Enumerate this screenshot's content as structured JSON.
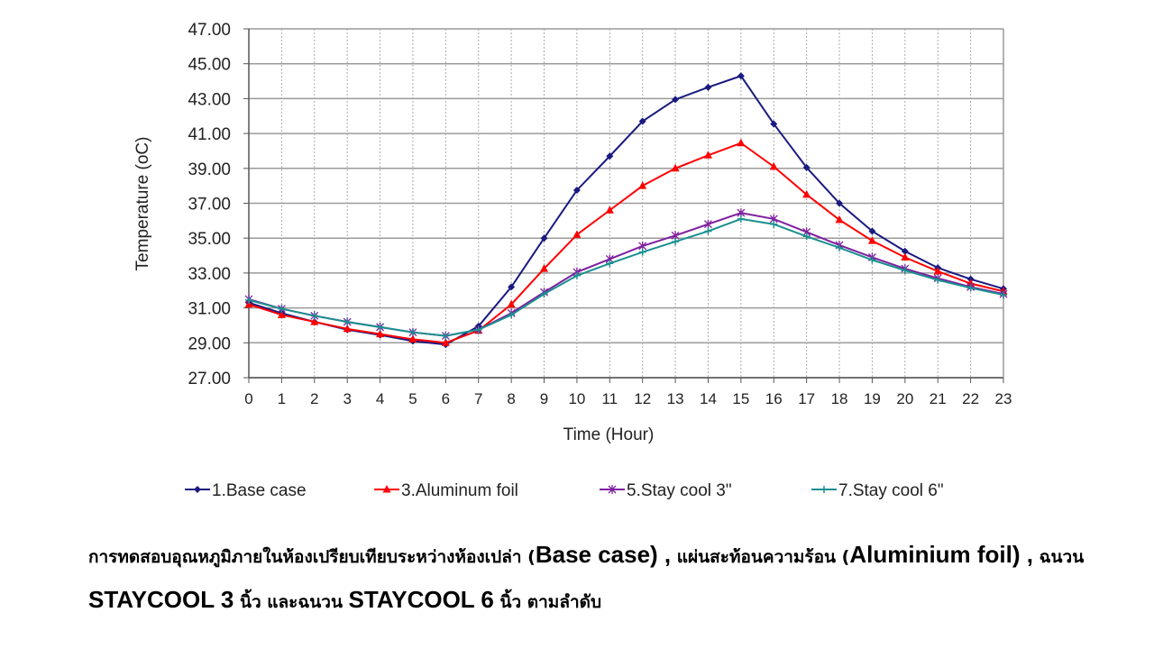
{
  "chart_data": {
    "type": "line",
    "title": "",
    "xlabel": "Time (Hour)",
    "ylabel": "Temperature (oC)",
    "ylim": [
      27,
      47
    ],
    "yticks": [
      "27.00",
      "29.00",
      "31.00",
      "33.00",
      "35.00",
      "37.00",
      "39.00",
      "41.00",
      "43.00",
      "45.00",
      "47.00"
    ],
    "x": [
      0,
      1,
      2,
      3,
      4,
      5,
      6,
      7,
      8,
      9,
      10,
      11,
      12,
      13,
      14,
      15,
      16,
      17,
      18,
      19,
      20,
      21,
      22,
      23
    ],
    "grid": true,
    "legend_position": "bottom",
    "series": [
      {
        "name": "1.Base case",
        "color": "#1a1a80",
        "marker": "diamond",
        "values": [
          31.3,
          30.7,
          30.2,
          29.75,
          29.45,
          29.1,
          28.9,
          29.95,
          32.2,
          35.0,
          37.75,
          39.7,
          41.7,
          42.95,
          43.65,
          44.3,
          41.55,
          39.05,
          37.0,
          35.4,
          34.25,
          33.3,
          32.65,
          32.1
        ]
      },
      {
        "name": "3.Aluminum foil",
        "color": "#ff0000",
        "marker": "triangle",
        "values": [
          31.2,
          30.6,
          30.2,
          29.8,
          29.5,
          29.2,
          29.0,
          29.7,
          31.2,
          33.25,
          35.2,
          36.6,
          38.0,
          39.0,
          39.75,
          40.45,
          39.1,
          37.5,
          36.05,
          34.85,
          33.9,
          33.1,
          32.4,
          31.95
        ]
      },
      {
        "name": "5.Stay cool 3\"",
        "color": "#7f1f9f",
        "marker": "star",
        "values": [
          31.5,
          30.95,
          30.55,
          30.2,
          29.9,
          29.6,
          29.4,
          29.75,
          30.7,
          31.9,
          33.05,
          33.8,
          34.55,
          35.15,
          35.8,
          36.45,
          36.1,
          35.35,
          34.6,
          33.9,
          33.25,
          32.7,
          32.2,
          31.8
        ]
      },
      {
        "name": "7.Stay cool 6\"",
        "color": "#1a9090",
        "marker": "plus",
        "values": [
          31.45,
          30.95,
          30.55,
          30.2,
          29.9,
          29.6,
          29.4,
          29.75,
          30.6,
          31.8,
          32.85,
          33.55,
          34.2,
          34.8,
          35.4,
          36.1,
          35.8,
          35.1,
          34.45,
          33.75,
          33.15,
          32.6,
          32.15,
          31.75
        ]
      }
    ]
  },
  "caption": {
    "p1": "การทดสอบอุณหภูมิภายในห้องเปรียบเทียบระหว่างห้องเปล่า (",
    "p2": "Base case) ,",
    "p3": " แผ่นสะท้อนความร้อน (",
    "p4": "Aluminium foil) ,",
    "p5": " ฉนวน ",
    "p6": "STAYCOOL 3",
    "p7": " นิ้ว และฉนวน ",
    "p8": "STAYCOOL 6",
    "p9": " นิ้ว ตามลำดับ"
  }
}
